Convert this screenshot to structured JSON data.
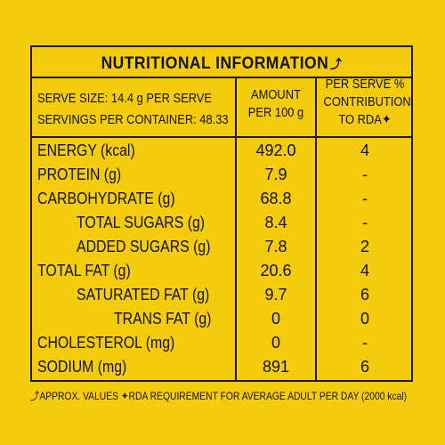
{
  "title": "NUTRITIONAL INFORMATION",
  "title_mark": "⤴",
  "serve_size": "SERVE SIZE: 14.4 g PER SERVE",
  "servings": "SERVINGS PER CONTAINER: 48.33",
  "col_amount_1": "AMOUNT",
  "col_amount_2": "PER 100 g",
  "col_rda_1": "PER SERVE %",
  "col_rda_2": "CONTRIBUTION",
  "col_rda_3": "TO RDA✦",
  "rows": [
    {
      "label": "ENERGY (kcal)",
      "amount": "492.0",
      "rda": "4"
    },
    {
      "label": "PROTEIN (g)",
      "amount": "7.9",
      "rda": "-"
    },
    {
      "label": "CARBOHYDRATE (g)",
      "amount": "68.8",
      "rda": "-"
    },
    {
      "label": "TOTAL SUGARS (g)",
      "amount": "8.4",
      "rda": "-"
    },
    {
      "label": "ADDED SUGARS (g)",
      "amount": "7.8",
      "rda": "2"
    },
    {
      "label": "TOTAL FAT (g)",
      "amount": "20.6",
      "rda": "4"
    },
    {
      "label": "SATURATED FAT (g)",
      "amount": "9.7",
      "rda": "6"
    },
    {
      "label": "TRANS FAT (g)",
      "amount": "0",
      "rda": "0"
    },
    {
      "label": "CHOLESTEROL (mg)",
      "amount": "0",
      "rda": "-"
    },
    {
      "label": "SODIUM (mg)",
      "amount": "891",
      "rda": "6"
    }
  ],
  "footer": "⤴APPROX. VALUES ✦RDA REQUIREMENT FOR AVERAGE ADULT PER DAY (2000 kcal)",
  "colors": {
    "background": "#f5cc0c",
    "ink": "#111111"
  }
}
